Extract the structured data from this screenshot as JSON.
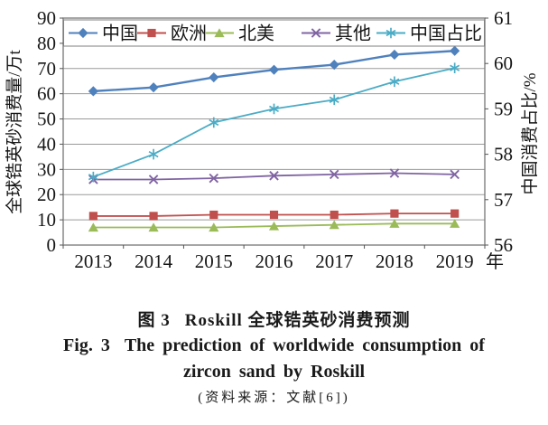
{
  "caption": {
    "cn_label": "图 3",
    "cn_text": "Roskill 全球锆英砂消费预测",
    "en_label": "Fig. 3",
    "en_text1": "The prediction of worldwide consumption of",
    "en_text2": "zircon sand by Roskill",
    "source": "(资料来源：文献[6])"
  },
  "chart_data": {
    "type": "line",
    "x": [
      "2013",
      "2014",
      "2015",
      "2016",
      "2017",
      "2018",
      "2019"
    ],
    "x_suffix": "年",
    "left_axis": {
      "label": "全球锆英砂消费量/万t",
      "min": 0,
      "max": 90,
      "step": 10,
      "ticks": [
        0,
        10,
        20,
        30,
        40,
        50,
        60,
        70,
        80,
        90
      ]
    },
    "right_axis": {
      "label": "中国消费占比/%",
      "min": 56,
      "max": 61,
      "step": 1,
      "ticks": [
        56,
        57,
        58,
        59,
        60,
        61
      ]
    },
    "grid": true,
    "legend_position": "top",
    "series": [
      {
        "id": "china",
        "name": "中国",
        "axis": "left",
        "color": "#4F81BD",
        "marker": "diamond",
        "values": [
          61,
          62.5,
          66.5,
          69.5,
          71.5,
          75.5,
          77
        ]
      },
      {
        "id": "europe",
        "name": "欧洲",
        "axis": "left",
        "color": "#C0504D",
        "marker": "square",
        "values": [
          11.5,
          11.5,
          12,
          12,
          12,
          12.5,
          12.5
        ]
      },
      {
        "id": "north-america",
        "name": "北美",
        "axis": "left",
        "color": "#9BBB59",
        "marker": "triangle",
        "values": [
          7,
          7,
          7,
          7.5,
          8,
          8.5,
          8.5
        ]
      },
      {
        "id": "other",
        "name": "其他",
        "axis": "left",
        "color": "#8064A2",
        "marker": "x",
        "values": [
          26,
          26,
          26.5,
          27.5,
          28,
          28.5,
          28
        ]
      },
      {
        "id": "china-share",
        "name": "中国占比",
        "axis": "right",
        "color": "#4BACC6",
        "marker": "asterisk",
        "values": [
          57.5,
          58.0,
          58.7,
          59.0,
          59.2,
          59.6,
          59.9
        ]
      }
    ],
    "colors": {
      "grid": "#9a9a9a",
      "border": "#7f7f7f",
      "text": "#161616"
    }
  }
}
